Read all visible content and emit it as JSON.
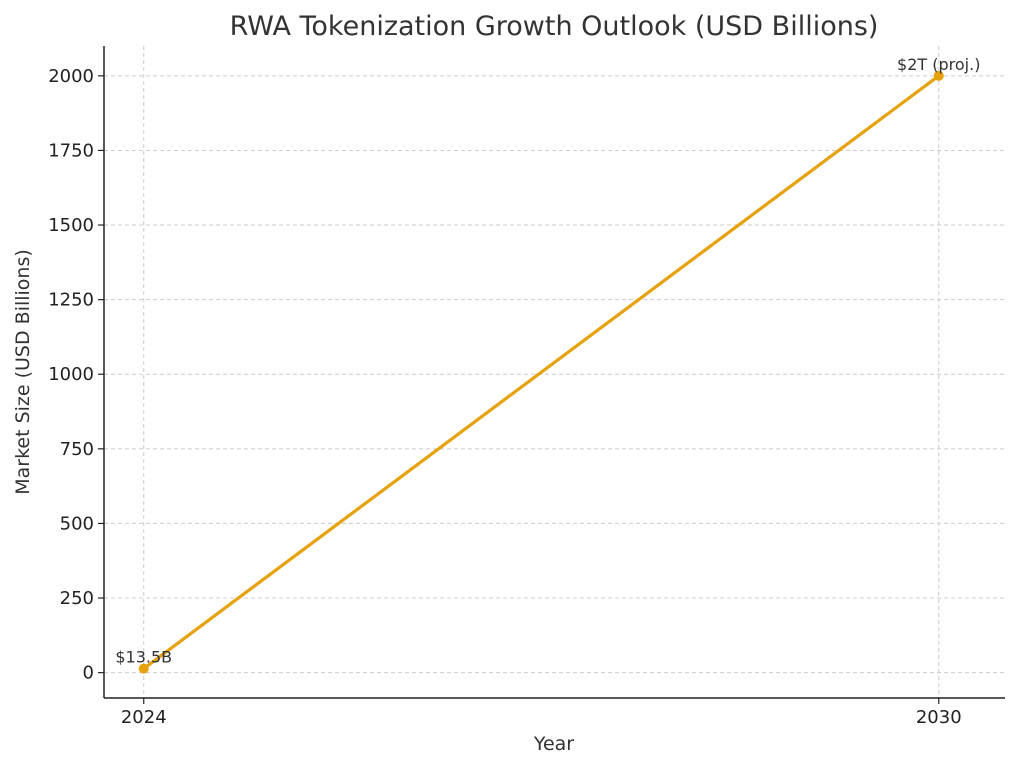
{
  "chart_data": {
    "type": "line",
    "title": "RWA Tokenization Growth Outlook (USD Billions)",
    "xlabel": "Year",
    "ylabel": "Market Size (USD Billions)",
    "x": [
      2024,
      2030
    ],
    "x_tick_labels": [
      "2024",
      "2030"
    ],
    "series": [
      {
        "values": [
          13.5,
          2000
        ],
        "color": "#E6A10B"
      }
    ],
    "data_labels": [
      "$13.5B",
      "$2T (proj.)"
    ],
    "ylim": [
      -85,
      2100
    ],
    "xlim": [
      2023.7,
      2030.5
    ],
    "y_ticks": [
      0,
      250,
      500,
      750,
      1000,
      1250,
      1500,
      1750,
      2000
    ],
    "y_tick_labels": [
      "0",
      "250",
      "500",
      "750",
      "1000",
      "1250",
      "1500",
      "1750",
      "2000"
    ],
    "grid": true,
    "marker": "circle"
  }
}
